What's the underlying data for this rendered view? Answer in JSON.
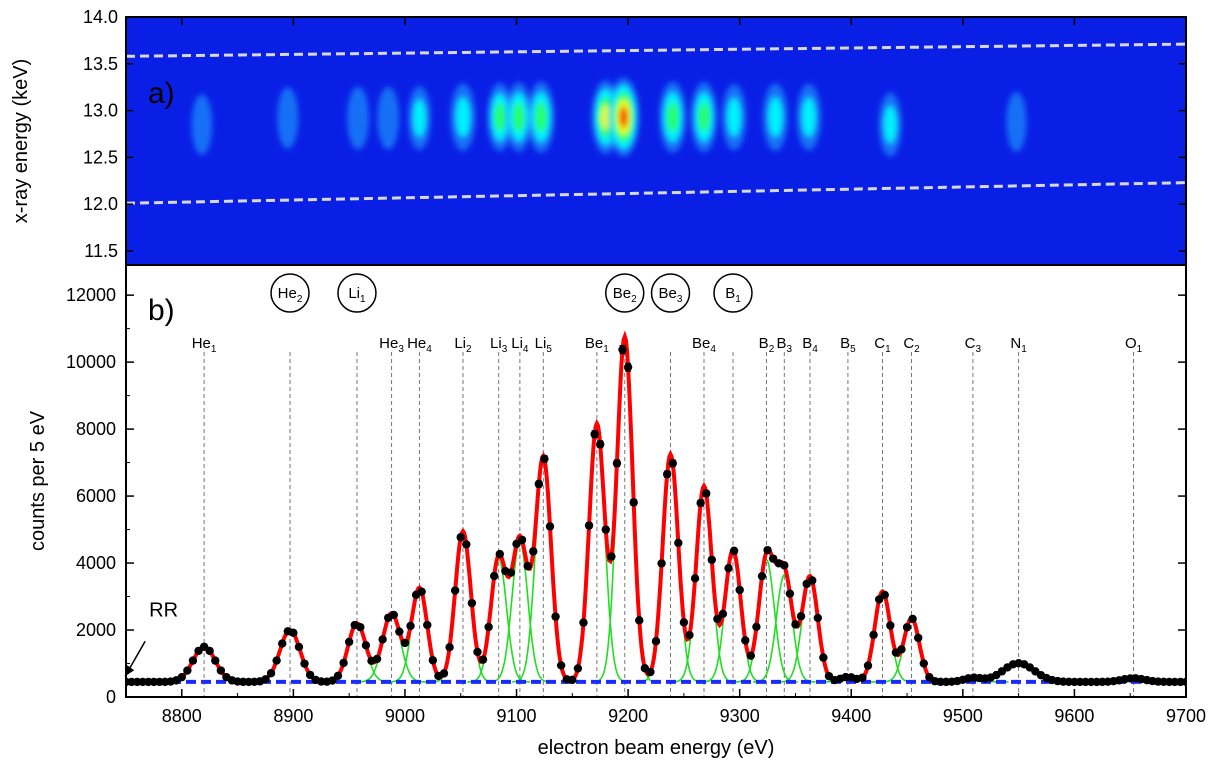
{
  "colors": {
    "fit": "#ff0000",
    "components": "#22dd22",
    "baseline": "#1a2bff",
    "data": "#000000",
    "map_background": "#0a1fe6",
    "dashed_boundaries": "#d8d8d8"
  },
  "chart_data": [
    {
      "type": "heatmap",
      "panel_label": "a)",
      "ylabel": "x-ray energy (keV)",
      "xlim": [
        8750,
        9700
      ],
      "ylim": [
        11.35,
        14.0
      ],
      "yticks": [
        11.5,
        12.0,
        12.5,
        13.0,
        13.5,
        14.0
      ],
      "ytick_labels": [
        "11.5",
        "12.0",
        "12.5",
        "13.0",
        "13.5",
        "14.0"
      ],
      "colorscale": [
        "#0a1fe6",
        "#1e9bff",
        "#00ffff",
        "#2aff50",
        "#ffff00",
        "#ff2a00"
      ],
      "dashed_boundaries": [
        {
          "x": [
            8750,
            9700
          ],
          "y": [
            13.58,
            13.71
          ]
        },
        {
          "x": [
            8750,
            9700
          ],
          "y": [
            12.01,
            12.23
          ]
        }
      ],
      "blobs": [
        {
          "x": 8818,
          "y": 12.85,
          "intensity": 0.18
        },
        {
          "x": 8895,
          "y": 12.92,
          "intensity": 0.22
        },
        {
          "x": 8958,
          "y": 12.92,
          "intensity": 0.28
        },
        {
          "x": 8985,
          "y": 12.92,
          "intensity": 0.27
        },
        {
          "x": 9013,
          "y": 12.92,
          "intensity": 0.32
        },
        {
          "x": 9052,
          "y": 12.93,
          "intensity": 0.48
        },
        {
          "x": 9085,
          "y": 12.93,
          "intensity": 0.5
        },
        {
          "x": 9102,
          "y": 12.93,
          "intensity": 0.55
        },
        {
          "x": 9122,
          "y": 12.93,
          "intensity": 0.62
        },
        {
          "x": 9180,
          "y": 12.93,
          "intensity": 0.72
        },
        {
          "x": 9196,
          "y": 12.93,
          "intensity": 0.95
        },
        {
          "x": 9240,
          "y": 12.93,
          "intensity": 0.62
        },
        {
          "x": 9268,
          "y": 12.93,
          "intensity": 0.58
        },
        {
          "x": 9295,
          "y": 12.93,
          "intensity": 0.42
        },
        {
          "x": 9332,
          "y": 12.93,
          "intensity": 0.48
        },
        {
          "x": 9362,
          "y": 12.93,
          "intensity": 0.44
        },
        {
          "x": 9435,
          "y": 12.85,
          "intensity": 0.32
        },
        {
          "x": 9548,
          "y": 12.88,
          "intensity": 0.15
        }
      ]
    },
    {
      "type": "scatter",
      "panel_label": "b)",
      "xlabel": "electron beam energy (eV)",
      "ylabel": "counts per 5 eV",
      "xlim": [
        8750,
        9700
      ],
      "ylim": [
        0,
        12900
      ],
      "xticks": [
        8800,
        8900,
        9000,
        9100,
        9200,
        9300,
        9400,
        9500,
        9600,
        9700
      ],
      "xtick_labels": [
        "8800",
        "8900",
        "9000",
        "9100",
        "9200",
        "9300",
        "9400",
        "9500",
        "9600",
        "9700"
      ],
      "yticks": [
        0,
        2000,
        4000,
        6000,
        8000,
        10000,
        12000
      ],
      "ytick_labels": [
        "0",
        "2000",
        "4000",
        "6000",
        "8000",
        "10000",
        "12000"
      ],
      "baseline": 450,
      "annotation": {
        "text": "RR",
        "x": 8760,
        "y": 500
      },
      "peaks": [
        {
          "base": "He",
          "sub": "1",
          "x": 8820,
          "amp": 1050,
          "sigma": 10,
          "circled": false
        },
        {
          "base": "He",
          "sub": "2",
          "x": 8897,
          "amp": 1550,
          "sigma": 9,
          "circled": true
        },
        {
          "base": "Li",
          "sub": "1",
          "x": 8957,
          "amp": 1750,
          "sigma": 8,
          "circled": true
        },
        {
          "base": "He",
          "sub": "3",
          "x": 8988,
          "amp": 2050,
          "sigma": 8,
          "circled": false
        },
        {
          "base": "He",
          "sub": "4",
          "x": 9013,
          "amp": 2800,
          "sigma": 7,
          "circled": false
        },
        {
          "base": "Li",
          "sub": "2",
          "x": 9052,
          "amp": 4500,
          "sigma": 7,
          "circled": false
        },
        {
          "base": "Li",
          "sub": "3",
          "x": 9084,
          "amp": 3700,
          "sigma": 7,
          "circled": false
        },
        {
          "base": "Li",
          "sub": "4",
          "x": 9103,
          "amp": 4200,
          "sigma": 7,
          "circled": false
        },
        {
          "base": "Li",
          "sub": "5",
          "x": 9124,
          "amp": 6700,
          "sigma": 7,
          "circled": false
        },
        {
          "base": "Be",
          "sub": "1",
          "x": 9172,
          "amp": 7700,
          "sigma": 7,
          "circled": false
        },
        {
          "base": "Be",
          "sub": "2",
          "x": 9197,
          "amp": 10300,
          "sigma": 7,
          "circled": true
        },
        {
          "base": "Be",
          "sub": "3",
          "x": 9238,
          "amp": 6800,
          "sigma": 7,
          "circled": true
        },
        {
          "base": "Be",
          "sub": "4",
          "x": 9268,
          "amp": 5850,
          "sigma": 7,
          "circled": false
        },
        {
          "base": "B",
          "sub": "1",
          "x": 9294,
          "amp": 3950,
          "sigma": 7,
          "circled": true
        },
        {
          "base": "B",
          "sub": "2",
          "x": 9324,
          "amp": 3650,
          "sigma": 7,
          "circled": false
        },
        {
          "base": "B",
          "sub": "3",
          "x": 9340,
          "amp": 3200,
          "sigma": 7,
          "circled": false
        },
        {
          "base": "B",
          "sub": "4",
          "x": 9363,
          "amp": 3150,
          "sigma": 7,
          "circled": false
        },
        {
          "base": "B",
          "sub": "5",
          "x": 9397,
          "amp": 150,
          "sigma": 7,
          "circled": false
        },
        {
          "base": "C",
          "sub": "1",
          "x": 9428,
          "amp": 2700,
          "sigma": 7,
          "circled": false
        },
        {
          "base": "C",
          "sub": "2",
          "x": 9454,
          "amp": 1900,
          "sigma": 7,
          "circled": false
        },
        {
          "base": "C",
          "sub": "3",
          "x": 9509,
          "amp": 120,
          "sigma": 8,
          "circled": false
        },
        {
          "base": "N",
          "sub": "1",
          "x": 9550,
          "amp": 560,
          "sigma": 14,
          "circled": false
        },
        {
          "base": "O",
          "sub": "1",
          "x": 9653,
          "amp": 110,
          "sigma": 10,
          "circled": false
        }
      ]
    }
  ]
}
